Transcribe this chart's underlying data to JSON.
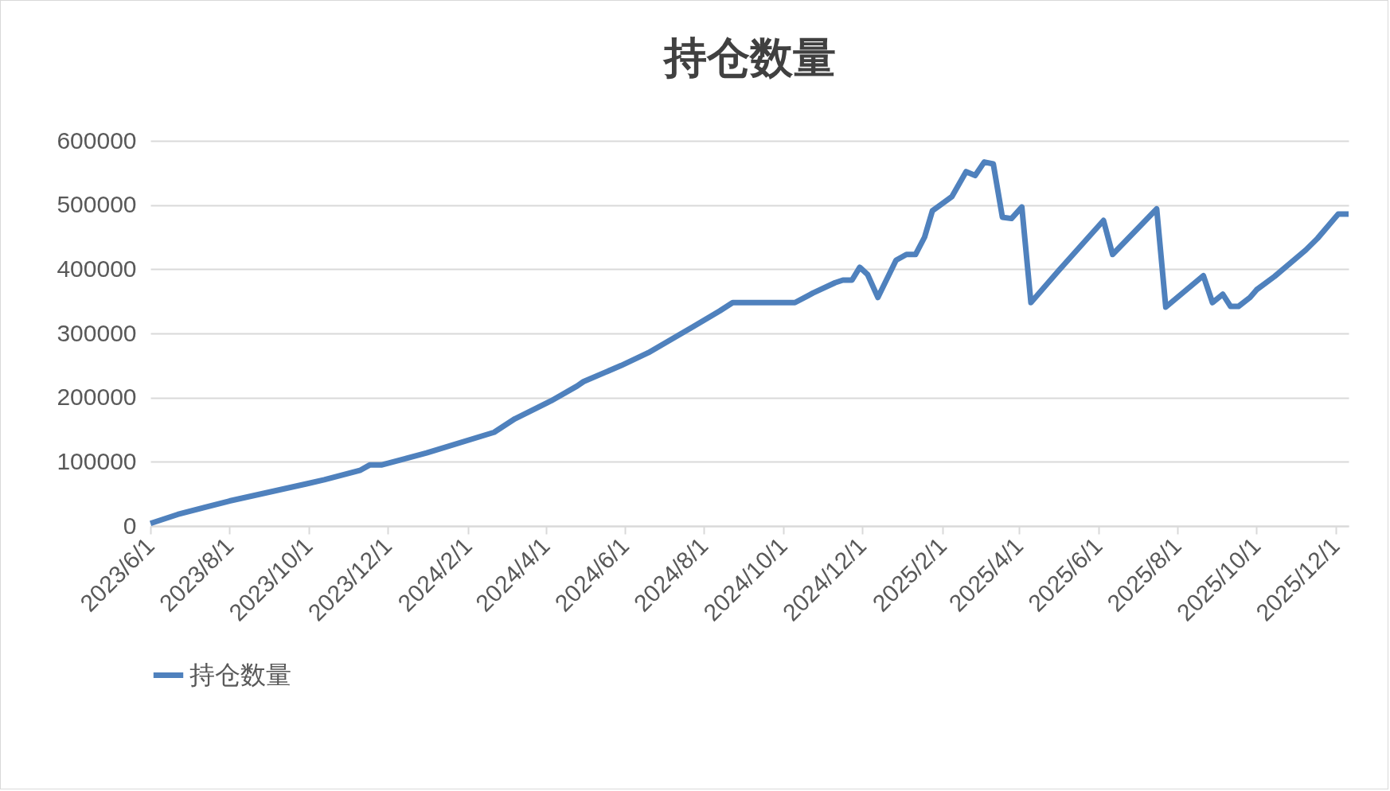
{
  "chart_data": {
    "type": "line",
    "title": "持仓数量",
    "x": [
      "2023-06-01",
      "2023-06-22",
      "2023-08-01",
      "2023-09-30",
      "2023-10-13",
      "2023-11-10",
      "2023-11-17",
      "2023-11-26",
      "2023-12-31",
      "2024-02-21",
      "2024-03-08",
      "2024-04-05",
      "2024-04-25",
      "2024-04-30",
      "2024-05-29",
      "2024-06-19",
      "2024-07-23",
      "2024-08-13",
      "2024-08-23",
      "2024-10-10",
      "2024-10-24",
      "2024-11-10",
      "2024-11-16",
      "2024-11-23",
      "2024-11-29",
      "2024-12-05",
      "2024-12-13",
      "2024-12-27",
      "2025-01-04",
      "2025-01-11",
      "2025-01-18",
      "2025-01-24",
      "2025-02-08",
      "2025-02-19",
      "2025-02-26",
      "2025-03-05",
      "2025-03-12",
      "2025-03-19",
      "2025-03-26",
      "2025-04-03",
      "2025-04-10",
      "2025-05-01",
      "2025-06-05",
      "2025-06-12",
      "2025-07-16",
      "2025-07-23",
      "2025-08-21",
      "2025-08-28",
      "2025-09-05",
      "2025-09-11",
      "2025-09-17",
      "2025-09-26",
      "2025-10-01",
      "2025-10-15",
      "2025-11-08",
      "2025-11-17",
      "2025-12-03",
      "2025-12-11"
    ],
    "series": [
      {
        "name": "持仓数量",
        "color": "#4f81bd",
        "values": [
          4000,
          18000,
          39000,
          66000,
          72000,
          87000,
          95000,
          95000,
          114000,
          146000,
          167000,
          195000,
          218000,
          225000,
          250000,
          270000,
          310000,
          335000,
          348000,
          348000,
          363000,
          379000,
          383000,
          383000,
          403000,
          392000,
          356000,
          414000,
          423000,
          423000,
          450000,
          491000,
          513000,
          552000,
          546000,
          567000,
          564000,
          481000,
          479000,
          497000,
          348000,
          397000,
          476000,
          423000,
          494000,
          341000,
          390000,
          348000,
          361000,
          342000,
          342000,
          356000,
          368000,
          389000,
          430000,
          448000,
          486000,
          486000
        ]
      }
    ],
    "xlim": [
      "2023-06-01",
      "2025-12-11"
    ],
    "xticks": [
      {
        "value": "2023-06-01",
        "label": "2023/6/1"
      },
      {
        "value": "2023-08-01",
        "label": "2023/8/1"
      },
      {
        "value": "2023-10-01",
        "label": "2023/10/1"
      },
      {
        "value": "2023-12-01",
        "label": "2023/12/1"
      },
      {
        "value": "2024-02-01",
        "label": "2024/2/1"
      },
      {
        "value": "2024-04-01",
        "label": "2024/4/1"
      },
      {
        "value": "2024-06-01",
        "label": "2024/6/1"
      },
      {
        "value": "2024-08-01",
        "label": "2024/8/1"
      },
      {
        "value": "2024-10-01",
        "label": "2024/10/1"
      },
      {
        "value": "2024-12-01",
        "label": "2024/12/1"
      },
      {
        "value": "2025-02-01",
        "label": "2025/2/1"
      },
      {
        "value": "2025-04-01",
        "label": "2025/4/1"
      },
      {
        "value": "2025-06-01",
        "label": "2025/6/1"
      },
      {
        "value": "2025-08-01",
        "label": "2025/8/1"
      },
      {
        "value": "2025-10-01",
        "label": "2025/10/1"
      },
      {
        "value": "2025-12-01",
        "label": "2025/12/1"
      }
    ],
    "ylim": [
      0,
      600000
    ],
    "yticks": [
      0,
      100000,
      200000,
      300000,
      400000,
      500000,
      600000
    ],
    "grid": "y",
    "legend": "bottom",
    "marker": "none",
    "line_style": "solid"
  }
}
